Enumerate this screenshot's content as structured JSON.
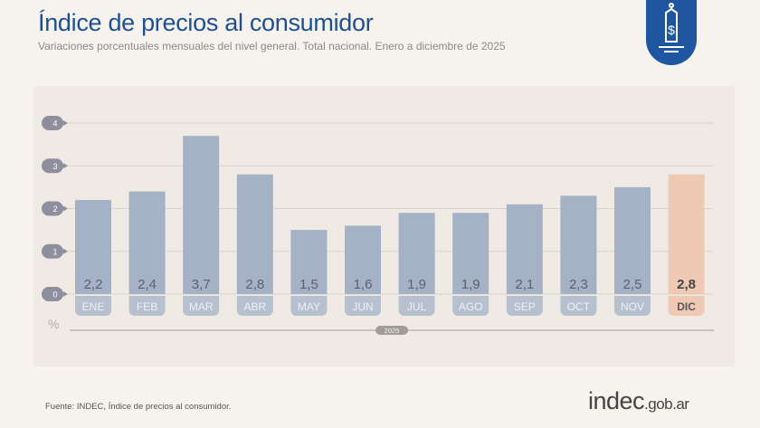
{
  "header": {
    "title": "Índice de precios al consumidor",
    "subtitle": "Variaciones porcentuales mensuales del nivel general. Total nacional. Enero a diciembre de 2025",
    "logo_icon": "price-tag-dollar-icon"
  },
  "footer": {
    "source": "Fuente: INDEC, Índice de precios al consumidor.",
    "brand_main": "indec",
    "brand_suffix": ".gob.ar"
  },
  "chart_data": {
    "type": "bar",
    "title": "",
    "ylabel": "%",
    "xlabel": "2025",
    "ylim": [
      0,
      4
    ],
    "yticks": [
      "0",
      "1",
      "2",
      "3",
      "4"
    ],
    "grid": true,
    "categories": [
      "ENE",
      "FEB",
      "MAR",
      "ABR",
      "MAY",
      "JUN",
      "JUL",
      "AGO",
      "SEP",
      "OCT",
      "NOV",
      "DIC"
    ],
    "values": [
      2.2,
      2.4,
      3.7,
      2.8,
      1.5,
      1.6,
      1.9,
      1.9,
      2.1,
      2.3,
      2.5,
      2.8
    ],
    "value_labels": [
      "2,2",
      "2,4",
      "3,7",
      "2,8",
      "1,5",
      "1,6",
      "1,9",
      "1,9",
      "2,1",
      "2,3",
      "2,5",
      "2,8"
    ],
    "colors": {
      "bar": "#a5b1c4",
      "highlight": "#efc9b3",
      "highlight_index": 11,
      "label_pill": "#b7c0cf",
      "tick_pill": "#8e8e9e"
    }
  }
}
